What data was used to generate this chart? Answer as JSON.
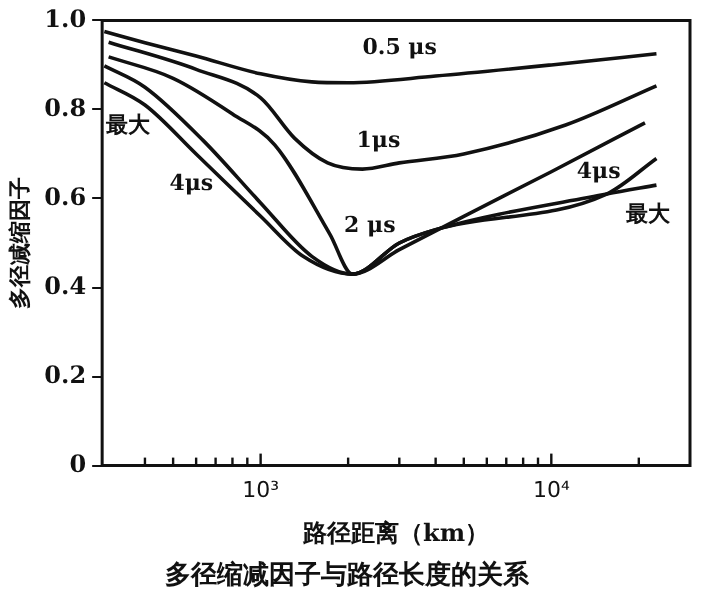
{
  "chart_data": {
    "type": "line",
    "title": "多径缩减因子与路径长度的关系",
    "xlabel": "路径距离（km）",
    "ylabel": "多径减缩因子",
    "log": "x",
    "grid": false,
    "legend": false,
    "marker": "none",
    "line_style": "solid",
    "xlim": [
      285,
      30000
    ],
    "xticks": [
      {
        "value": 400,
        "label": null
      },
      {
        "value": 500,
        "label": null
      },
      {
        "value": 600,
        "label": null
      },
      {
        "value": 700,
        "label": null
      },
      {
        "value": 800,
        "label": null
      },
      {
        "value": 900,
        "label": null
      },
      {
        "value": 1000,
        "label": "10³"
      },
      {
        "value": 2000,
        "label": null
      },
      {
        "value": 3000,
        "label": null
      },
      {
        "value": 4000,
        "label": null
      },
      {
        "value": 5000,
        "label": null
      },
      {
        "value": 6000,
        "label": null
      },
      {
        "value": 7000,
        "label": null
      },
      {
        "value": 8000,
        "label": null
      },
      {
        "value": 9000,
        "label": null
      },
      {
        "value": 10000,
        "label": "10⁴"
      },
      {
        "value": 20000,
        "label": null
      }
    ],
    "ylim": [
      0,
      1
    ],
    "yticks": [
      0,
      0.2,
      0.4,
      0.6,
      0.8,
      {
        "value": 1,
        "label": "1.0"
      }
    ],
    "series": [
      {
        "name": "0.5 μs",
        "color": "#111111",
        "x": [
          290,
          400,
          600,
          1000,
          1500,
          2000,
          4000,
          10000,
          23000
        ],
        "values": [
          0.975,
          0.95,
          0.92,
          0.88,
          0.862,
          0.86,
          0.875,
          0.9,
          0.925
        ]
      },
      {
        "name": "1μs",
        "color": "#111111",
        "x": [
          300,
          600,
          1000,
          1310,
          1700,
          2240,
          3000,
          5000,
          11200,
          23000
        ],
        "values": [
          0.951,
          0.89,
          0.826,
          0.735,
          0.68,
          0.666,
          0.68,
          0.7,
          0.765,
          0.853
        ]
      },
      {
        "name": "2 μs",
        "color": "#111111",
        "x": [
          300,
          500,
          800,
          1120,
          1730,
          2070,
          3000,
          5000,
          10000,
          21000
        ],
        "values": [
          0.918,
          0.87,
          0.79,
          0.72,
          0.52,
          0.43,
          0.485,
          0.56,
          0.66,
          0.77
        ]
      },
      {
        "name": "4μs",
        "color": "#111111",
        "x": [
          290,
          400,
          635,
          1000,
          1500,
          2070,
          3000,
          4000,
          15500,
          23000
        ],
        "values": [
          0.898,
          0.85,
          0.73,
          0.59,
          0.47,
          0.43,
          0.5,
          0.53,
          0.61,
          0.69
        ]
      },
      {
        "name": "最大",
        "color": "#111111",
        "x": [
          290,
          400,
          600,
          1000,
          1400,
          2070,
          3000,
          4000,
          15500,
          23000
        ],
        "values": [
          0.86,
          0.81,
          0.7,
          0.56,
          0.47,
          0.43,
          0.5,
          0.53,
          0.61,
          0.63
        ]
      }
    ]
  }
}
